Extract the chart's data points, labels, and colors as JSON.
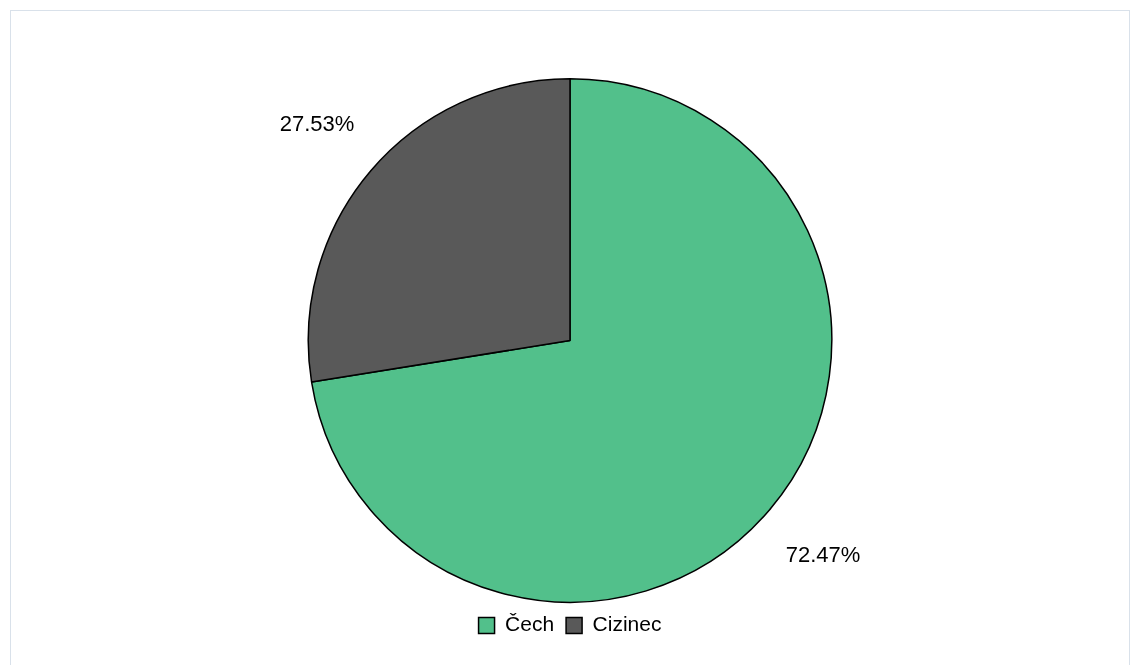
{
  "chart_data": {
    "type": "pie",
    "categories": [
      "Čech",
      "Cizinec"
    ],
    "values": [
      72.47,
      27.53
    ],
    "colors": [
      "#52c08b",
      "#595959"
    ],
    "value_labels": [
      "72.47%",
      "27.53%"
    ],
    "legend": "bottom"
  }
}
